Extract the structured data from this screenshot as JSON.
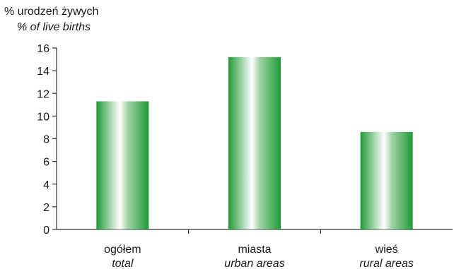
{
  "chart_data": {
    "type": "bar",
    "ylabel": "% urodzeń żywych",
    "ylabel_en": "% of live births",
    "categories": [
      {
        "label": "ogółem",
        "label_en": "total"
      },
      {
        "label": "miasta",
        "label_en": "urban areas"
      },
      {
        "label": "wieś",
        "label_en": "rural areas"
      }
    ],
    "values": [
      11.3,
      15.2,
      8.6
    ],
    "ylim": [
      0,
      16
    ],
    "yticks": [
      "0",
      "2",
      "4",
      "6",
      "8",
      "10",
      "12",
      "14",
      "16"
    ],
    "grid": false,
    "bar_color": "#1f9a35"
  }
}
